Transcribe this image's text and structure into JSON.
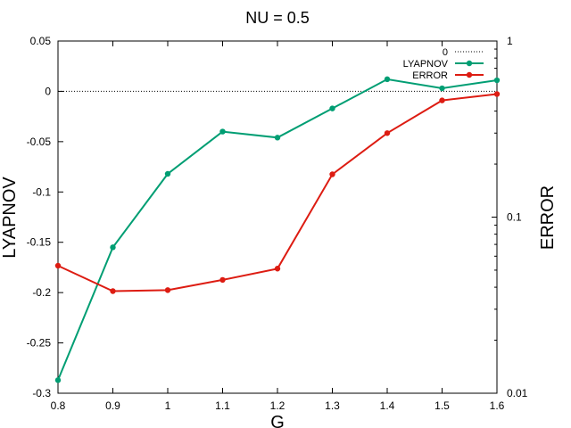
{
  "chart_data": {
    "type": "line",
    "title": "NU = 0.5",
    "xlabel": "G",
    "ylabel": "LYAPNOV",
    "y2label": "ERROR",
    "xlim": [
      0.8,
      1.6
    ],
    "ylim": [
      -0.3,
      0.05
    ],
    "y2lim": [
      0.01,
      1
    ],
    "y2scale": "log",
    "x_ticks": [
      "0.8",
      "0.9",
      "1",
      "1.1",
      "1.2",
      "1.3",
      "1.4",
      "1.5",
      "1.6"
    ],
    "y_ticks": [
      "0.05",
      "0",
      "-0.05",
      "-0.1",
      "-0.15",
      "-0.2",
      "-0.25",
      "-0.3"
    ],
    "y2_ticks": [
      "1",
      "0.1",
      "0.01"
    ],
    "legend_position": "top-right",
    "x": [
      0.8,
      0.9,
      1.0,
      1.1,
      1.2,
      1.3,
      1.4,
      1.5,
      1.6
    ],
    "series": [
      {
        "name": "0",
        "axis": "left",
        "style": "dotted",
        "color": "#000000",
        "values": [
          0,
          0,
          0,
          0,
          0,
          0,
          0,
          0,
          0
        ]
      },
      {
        "name": "LYAPNOV",
        "axis": "left",
        "style": "line-points",
        "color": "#009e73",
        "values": [
          -0.287,
          -0.155,
          -0.082,
          -0.04,
          -0.046,
          -0.017,
          0.012,
          0.003,
          0.011
        ]
      },
      {
        "name": "ERROR",
        "axis": "right",
        "style": "line-points",
        "color": "#dd1c12",
        "values": [
          0.053,
          0.038,
          0.0385,
          0.044,
          0.051,
          0.175,
          0.3,
          0.46,
          0.5
        ]
      }
    ]
  }
}
